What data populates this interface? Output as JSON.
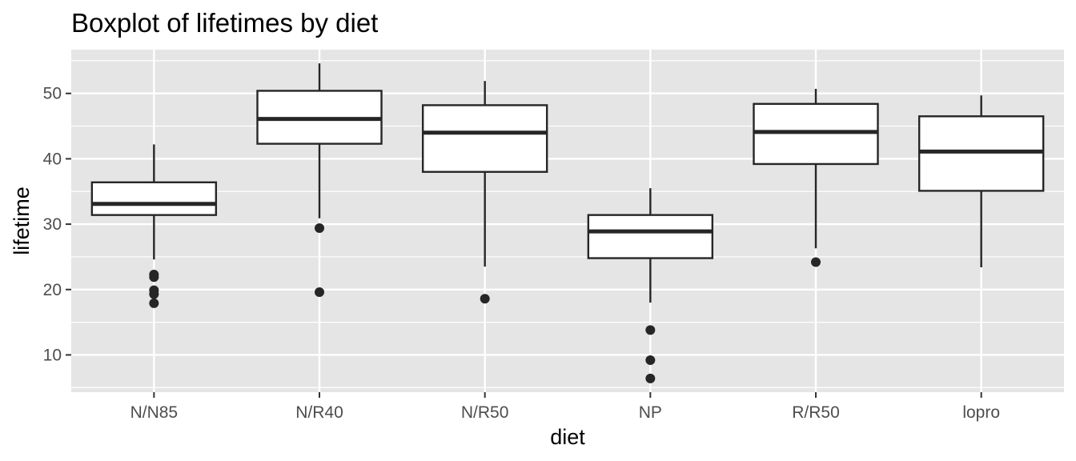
{
  "chart_data": {
    "type": "boxplot",
    "title": "Boxplot of lifetimes by diet",
    "xlabel": "diet",
    "ylabel": "lifetime",
    "ylim": [
      4.3,
      56.7
    ],
    "yticks": [
      10,
      20,
      30,
      40,
      50
    ],
    "grid": true,
    "categories": [
      "N/N85",
      "N/R40",
      "N/R50",
      "NP",
      "R/R50",
      "lopro"
    ],
    "boxes": [
      {
        "category": "N/N85",
        "whisker_low": 24.6,
        "q1": 31.4,
        "median": 33.1,
        "q3": 36.4,
        "whisker_high": 42.2,
        "outliers": [
          22.3,
          21.9,
          19.9,
          19.3,
          17.9
        ]
      },
      {
        "category": "N/R40",
        "whisker_low": 30.9,
        "q1": 42.3,
        "median": 46.1,
        "q3": 50.4,
        "whisker_high": 54.6,
        "outliers": [
          29.4,
          19.6
        ]
      },
      {
        "category": "N/R50",
        "whisker_low": 23.5,
        "q1": 38.0,
        "median": 44.0,
        "q3": 48.2,
        "whisker_high": 51.9,
        "outliers": [
          18.6
        ]
      },
      {
        "category": "NP",
        "whisker_low": 18.0,
        "q1": 24.8,
        "median": 28.9,
        "q3": 31.4,
        "whisker_high": 35.5,
        "outliers": [
          13.8,
          9.2,
          6.4
        ]
      },
      {
        "category": "R/R50",
        "whisker_low": 26.3,
        "q1": 39.2,
        "median": 44.1,
        "q3": 48.4,
        "whisker_high": 50.7,
        "outliers": [
          24.2
        ]
      },
      {
        "category": "lopro",
        "whisker_low": 23.4,
        "q1": 35.1,
        "median": 41.1,
        "q3": 46.5,
        "whisker_high": 49.7,
        "outliers": []
      }
    ],
    "colors": {
      "panel_background": "#e5e5e5",
      "grid_line": "#ffffff",
      "box_fill": "#ffffff",
      "box_stroke": "#262626",
      "outlier": "#262626"
    }
  }
}
